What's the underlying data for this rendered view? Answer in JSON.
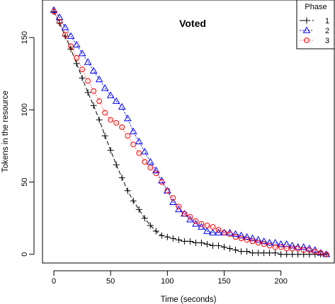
{
  "chart_data": {
    "type": "line",
    "title": "Voted",
    "xlabel": "Time (seconds)",
    "ylabel": "Tokens in the resource",
    "xlim": [
      -10,
      247
    ],
    "ylim": [
      -6,
      176
    ],
    "xticks": [
      0,
      50,
      100,
      150,
      200
    ],
    "yticks": [
      0,
      50,
      100,
      150
    ],
    "legend_title": "Phase",
    "legend_position": "top-right",
    "grid": false,
    "series": [
      {
        "name": "1",
        "color": "#000000",
        "marker": "plus",
        "dash": "6,3",
        "x": [
          0,
          5,
          10,
          15,
          20,
          25,
          30,
          35,
          40,
          45,
          50,
          55,
          60,
          65,
          70,
          75,
          80,
          85,
          90,
          95,
          100,
          105,
          110,
          115,
          120,
          125,
          130,
          135,
          140,
          145,
          150,
          155,
          160,
          165,
          170,
          175,
          180,
          185,
          190,
          195,
          200,
          205,
          210,
          215,
          220,
          225,
          230,
          235,
          240
        ],
        "y": [
          168,
          160,
          151,
          142,
          132,
          122,
          112,
          103,
          93,
          82,
          72,
          62,
          53,
          44,
          37,
          31,
          25,
          20,
          16,
          13,
          12,
          11,
          10,
          9,
          9,
          8,
          8,
          7,
          6,
          6,
          5,
          4,
          3,
          2,
          2,
          1,
          1,
          1,
          1,
          1,
          0,
          0,
          0,
          0,
          0,
          0,
          0,
          0,
          0
        ]
      },
      {
        "name": "2",
        "color": "#0000ff",
        "marker": "triangle",
        "dash": "2,2",
        "x": [
          0,
          5,
          10,
          15,
          20,
          25,
          30,
          35,
          40,
          45,
          50,
          55,
          60,
          65,
          70,
          75,
          80,
          85,
          90,
          95,
          100,
          105,
          110,
          115,
          120,
          125,
          130,
          135,
          140,
          145,
          150,
          155,
          160,
          165,
          170,
          175,
          180,
          185,
          190,
          195,
          200,
          205,
          210,
          215,
          220,
          225,
          230,
          235,
          240
        ],
        "y": [
          169,
          164,
          157,
          151,
          145,
          139,
          133,
          127,
          121,
          115,
          110,
          106,
          102,
          94,
          85,
          78,
          71,
          64,
          58,
          51,
          44,
          36,
          31,
          28,
          24,
          21,
          19,
          16,
          15,
          15,
          15,
          15,
          14,
          13,
          12,
          11,
          10,
          9,
          8,
          8,
          7,
          7,
          6,
          5,
          5,
          4,
          3,
          1,
          0
        ]
      },
      {
        "name": "3",
        "color": "#ff0000",
        "marker": "circle",
        "dash": "1,2.5",
        "x": [
          0,
          5,
          10,
          15,
          20,
          25,
          30,
          35,
          40,
          45,
          50,
          55,
          60,
          65,
          70,
          75,
          80,
          85,
          90,
          95,
          100,
          105,
          110,
          115,
          120,
          125,
          130,
          135,
          140,
          145,
          150,
          155,
          160,
          165,
          170,
          175,
          180,
          185,
          190,
          195,
          200,
          205,
          210,
          215,
          220,
          225,
          230,
          235,
          240
        ],
        "y": [
          168,
          161,
          152,
          144,
          136,
          128,
          120,
          113,
          106,
          98,
          93,
          91,
          88,
          82,
          76,
          70,
          64,
          60,
          56,
          50,
          44,
          39,
          33,
          28,
          26,
          23,
          21,
          20,
          19,
          17,
          15,
          14,
          12,
          11,
          10,
          9,
          8,
          7,
          6,
          5,
          5,
          4,
          4,
          4,
          3,
          3,
          2,
          1,
          0
        ]
      }
    ]
  }
}
